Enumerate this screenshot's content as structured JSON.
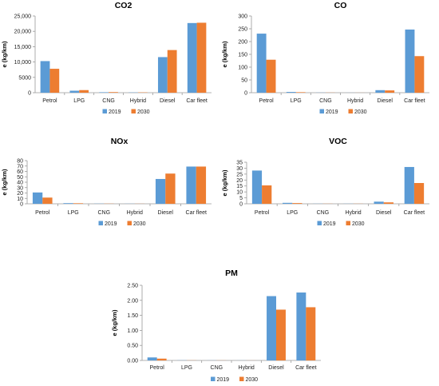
{
  "chart_data": [
    {
      "type": "bar",
      "title": "CO2",
      "ylabel": "e (kg/km)",
      "categories": [
        "Petrol",
        "LPG",
        "CNG",
        "Hybrid",
        "Diesel",
        "Car fleet"
      ],
      "series": [
        {
          "name": "2019",
          "values": [
            10300,
            650,
            150,
            80,
            11600,
            22700
          ]
        },
        {
          "name": "2030",
          "values": [
            7800,
            850,
            200,
            100,
            13900,
            22800
          ]
        }
      ],
      "ylim": [
        0,
        25000
      ],
      "yticks": [
        0,
        5000,
        10000,
        15000,
        20000,
        25000
      ],
      "ytick_labels": [
        "0",
        "5000",
        "10,000",
        "15,000",
        "20,000",
        "25,000"
      ],
      "legend": "bottom",
      "colors": [
        "#5b9bd5",
        "#ed7d31"
      ]
    },
    {
      "type": "bar",
      "title": "CO",
      "ylabel": "e (kg/km)",
      "categories": [
        "Petrol",
        "LPG",
        "CNG",
        "Hybrid",
        "Diesel",
        "Car fleet"
      ],
      "series": [
        {
          "name": "2019",
          "values": [
            231,
            3,
            0.5,
            0.2,
            10,
            247
          ]
        },
        {
          "name": "2030",
          "values": [
            129,
            2,
            0.5,
            0.2,
            9,
            143
          ]
        }
      ],
      "ylim": [
        0,
        300
      ],
      "yticks": [
        0,
        50,
        100,
        150,
        200,
        250,
        300
      ],
      "ytick_labels": [
        "0",
        "50",
        "100",
        "150",
        "200",
        "250",
        "300"
      ],
      "legend": "bottom",
      "colors": [
        "#5b9bd5",
        "#ed7d31"
      ]
    },
    {
      "type": "bar",
      "title": "NOx",
      "ylabel": "e (kg/km)",
      "categories": [
        "Petrol",
        "LPG",
        "CNG",
        "Hybrid",
        "Diesel",
        "Car fleet"
      ],
      "series": [
        {
          "name": "2019",
          "values": [
            21,
            1.2,
            0.3,
            0.2,
            46,
            69
          ]
        },
        {
          "name": "2030",
          "values": [
            11.5,
            1,
            0.3,
            0.2,
            56,
            69
          ]
        }
      ],
      "ylim": [
        0,
        80
      ],
      "yticks": [
        0,
        10,
        20,
        30,
        40,
        50,
        60,
        70,
        80
      ],
      "ytick_labels": [
        "0",
        "10",
        "20",
        "30",
        "40",
        "50",
        "60",
        "70",
        "80"
      ],
      "legend": "bottom",
      "colors": [
        "#5b9bd5",
        "#ed7d31"
      ]
    },
    {
      "type": "bar",
      "title": "VOC",
      "ylabel": "e (kg/km)",
      "categories": [
        "Petrol",
        "LPG",
        "CNG",
        "Hybrid",
        "Diesel",
        "Car fleet"
      ],
      "series": [
        {
          "name": "2019",
          "values": [
            28,
            0.8,
            0.1,
            0.1,
            1.8,
            31
          ]
        },
        {
          "name": "2030",
          "values": [
            15.5,
            0.6,
            0.1,
            0.1,
            1.2,
            17.5
          ]
        }
      ],
      "ylim": [
        0,
        35
      ],
      "yticks": [
        0,
        5,
        10,
        15,
        20,
        25,
        30,
        35
      ],
      "ytick_labels": [
        "0",
        "5",
        "10",
        "15",
        "20",
        "25",
        "30",
        "35"
      ],
      "legend": "bottom",
      "colors": [
        "#5b9bd5",
        "#ed7d31"
      ]
    },
    {
      "type": "bar",
      "title": "PM",
      "ylabel": "e (kg/km)",
      "categories": [
        "Petrol",
        "LPG",
        "CNG",
        "Hybrid",
        "Diesel",
        "Car fleet"
      ],
      "series": [
        {
          "name": "2019",
          "values": [
            0.1,
            0.005,
            0.003,
            0.002,
            2.14,
            2.26
          ]
        },
        {
          "name": "2030",
          "values": [
            0.06,
            0.004,
            0.003,
            0.002,
            1.69,
            1.77
          ]
        }
      ],
      "ylim": [
        0,
        2.5
      ],
      "yticks": [
        0,
        0.5,
        1,
        1.5,
        2,
        2.5
      ],
      "ytick_labels": [
        "0.00",
        "0.50",
        "1.00",
        "1.50",
        "2.00",
        "2.50"
      ],
      "legend": "bottom",
      "colors": [
        "#5b9bd5",
        "#ed7d31"
      ]
    }
  ]
}
